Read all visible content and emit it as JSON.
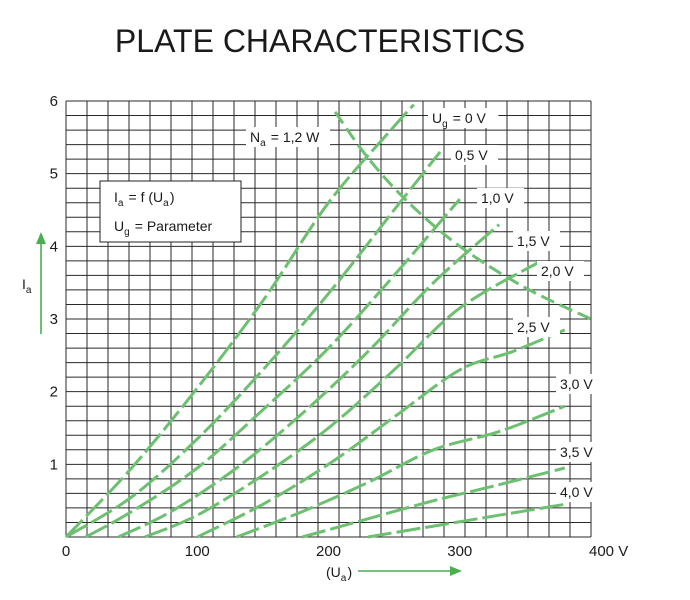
{
  "chart_data": {
    "type": "line",
    "title": "PLATE CHARACTERISTICS",
    "xlim": [
      0,
      400
    ],
    "ylim": [
      0,
      6
    ],
    "x_ticks": [
      0,
      100,
      200,
      300,
      400
    ],
    "x_tick_labels": [
      "0",
      "100",
      "200",
      "300",
      "400 V"
    ],
    "y_ticks": [
      1,
      2,
      3,
      4,
      5,
      6
    ],
    "y_tick_labels": [
      "1",
      "2",
      "3",
      "4",
      "5",
      "6"
    ],
    "xlabel": "(Ua)",
    "ylabel": "Ia",
    "grid": true,
    "legend": {
      "line1": "Ia = f (Ua)",
      "line2": "Ug = Parameter"
    },
    "power_curve": {
      "label": "Na = 1,2 W",
      "x": [
        205,
        230,
        260,
        300,
        350,
        400
      ],
      "y": [
        5.85,
        5.22,
        4.62,
        4.0,
        3.43,
        3.0
      ]
    },
    "series": [
      {
        "name": "Ug = 0 V",
        "label": "Ug = 0 V",
        "x": [
          0,
          50,
          100,
          150,
          200,
          250,
          265
        ],
        "y": [
          0,
          0.95,
          2.05,
          3.25,
          4.6,
          5.65,
          5.95
        ]
      },
      {
        "name": "0,5 V",
        "label": "0,5 V",
        "x": [
          0,
          50,
          100,
          150,
          200,
          250,
          285
        ],
        "y": [
          0,
          0.55,
          1.35,
          2.3,
          3.35,
          4.5,
          5.3
        ]
      },
      {
        "name": "1,0 V",
        "label": "1,0 V",
        "x": [
          15,
          50,
          100,
          150,
          200,
          250,
          300
        ],
        "y": [
          0,
          0.35,
          0.95,
          1.75,
          2.6,
          3.6,
          4.65
        ]
      },
      {
        "name": "1,5 V",
        "label": "1,5 V",
        "x": [
          40,
          80,
          130,
          180,
          230,
          280,
          330
        ],
        "y": [
          0,
          0.35,
          0.95,
          1.7,
          2.55,
          3.5,
          4.3
        ]
      },
      {
        "name": "2,0 V",
        "label": "2,0 V",
        "x": [
          60,
          100,
          150,
          200,
          250,
          300,
          360
        ],
        "y": [
          0,
          0.3,
          0.85,
          1.5,
          2.3,
          3.15,
          3.78
        ]
      },
      {
        "name": "2,5 V",
        "label": "2,5 V",
        "x": [
          100,
          150,
          200,
          250,
          300,
          340,
          380
        ],
        "y": [
          0,
          0.45,
          1.0,
          1.65,
          2.3,
          2.55,
          2.85
        ]
      },
      {
        "name": "3,0 V",
        "label": "3,0 V",
        "x": [
          130,
          180,
          230,
          280,
          330,
          380
        ],
        "y": [
          0,
          0.35,
          0.75,
          1.2,
          1.45,
          1.8
        ]
      },
      {
        "name": "3,5 V",
        "label": "3,5 V",
        "x": [
          180,
          230,
          280,
          330,
          380
        ],
        "y": [
          0,
          0.25,
          0.5,
          0.72,
          0.95
        ]
      },
      {
        "name": "4,0 V",
        "label": "4,0 V",
        "x": [
          230,
          280,
          330,
          380
        ],
        "y": [
          0,
          0.15,
          0.3,
          0.45
        ]
      }
    ],
    "color": "#6cc070",
    "arrow_color": "#4cae50"
  }
}
